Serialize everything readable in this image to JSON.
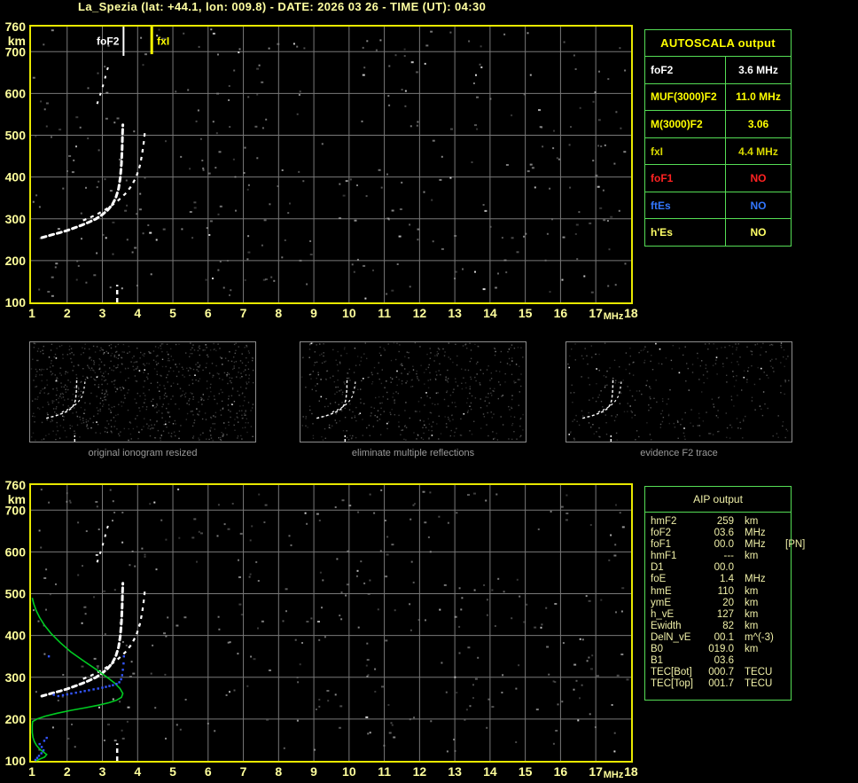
{
  "title": "La_Spezia (lat: +44.1, lon: 009.8) - DATE: 2026 03 26 - TIME (UT): 04:30",
  "colors": {
    "background": "#000000",
    "title_text": "#ffffa0",
    "axis_text": "#ffff9c",
    "plot_border": "#e8e800",
    "grid": "#787878",
    "trace": "#ffffff",
    "profile_green": "#00cc22",
    "restored_blue": "#3355ff",
    "table_border": "#55dd55",
    "autoscala_title": "#ffff00",
    "aip_text": "#f0f0a8",
    "caption_text": "#9a9a9a"
  },
  "ionogram": {
    "x_unit": "MHz",
    "y_unit": "km",
    "x_ticks": [
      1,
      2,
      3,
      4,
      5,
      6,
      7,
      8,
      9,
      10,
      11,
      12,
      13,
      14,
      15,
      16,
      17,
      18
    ],
    "y_ticks": [
      760,
      700,
      600,
      500,
      400,
      300,
      200,
      100
    ],
    "x_range": [
      1,
      18
    ],
    "y_range": [
      100,
      760
    ]
  },
  "chart_data": {
    "type": "line",
    "title": "Ionogram La_Spezia 2026-03-26 04:30 UT",
    "xlabel": "MHz",
    "ylabel": "km",
    "xlim": [
      1,
      18
    ],
    "ylim": [
      100,
      760
    ],
    "legend": "none",
    "grid": "on",
    "markers": [
      {
        "key": "foF2",
        "label": "foF2",
        "x": 3.6,
        "color": "#ffffff"
      },
      {
        "key": "fxI",
        "label": "fxI",
        "x": 4.4,
        "color": "#ffff00"
      }
    ],
    "series": [
      {
        "key": "o_trace",
        "name": "F2 trace ordinary ray (white)",
        "points": [
          [
            1.28,
            255
          ],
          [
            1.45,
            259
          ],
          [
            1.62,
            263
          ],
          [
            1.8,
            267
          ],
          [
            2.0,
            272
          ],
          [
            2.2,
            278
          ],
          [
            2.42,
            285
          ],
          [
            2.62,
            292
          ],
          [
            2.82,
            300
          ],
          [
            3.0,
            310
          ],
          [
            3.15,
            321
          ],
          [
            3.28,
            334
          ],
          [
            3.38,
            350
          ],
          [
            3.46,
            372
          ],
          [
            3.51,
            400
          ],
          [
            3.54,
            432
          ],
          [
            3.56,
            468
          ],
          [
            3.57,
            502
          ],
          [
            3.58,
            525
          ]
        ]
      },
      {
        "key": "x_trace",
        "name": "F2 trace extraordinary ray (white)",
        "points": [
          [
            2.45,
            296
          ],
          [
            2.65,
            303
          ],
          [
            2.85,
            311
          ],
          [
            3.05,
            320
          ],
          [
            3.25,
            331
          ],
          [
            3.45,
            344
          ],
          [
            3.65,
            360
          ],
          [
            3.82,
            378
          ],
          [
            3.96,
            400
          ],
          [
            4.06,
            426
          ],
          [
            4.13,
            455
          ],
          [
            4.18,
            486
          ],
          [
            4.21,
            512
          ]
        ]
      },
      {
        "key": "second_hop",
        "name": "second hop fragments (white)",
        "points": [
          [
            2.85,
            575
          ],
          [
            2.95,
            600
          ],
          [
            3.05,
            628
          ],
          [
            3.12,
            652
          ],
          [
            3.18,
            668
          ]
        ]
      },
      {
        "key": "e_streak",
        "name": "E-region vertical streak (white)",
        "points": [
          [
            3.42,
            100
          ],
          [
            3.42,
            142
          ]
        ]
      },
      {
        "key": "profile",
        "name": "electron density profile (green, bottom plot)",
        "points": [
          [
            1.01,
            490
          ],
          [
            1.05,
            476
          ],
          [
            1.12,
            460
          ],
          [
            1.22,
            443
          ],
          [
            1.36,
            424
          ],
          [
            1.55,
            404
          ],
          [
            1.8,
            383
          ],
          [
            2.1,
            361
          ],
          [
            2.45,
            340
          ],
          [
            2.8,
            320
          ],
          [
            3.1,
            302
          ],
          [
            3.35,
            286
          ],
          [
            3.5,
            273
          ],
          [
            3.58,
            261
          ],
          [
            3.54,
            252
          ],
          [
            3.4,
            245
          ],
          [
            3.18,
            239
          ],
          [
            2.88,
            233
          ],
          [
            2.52,
            227
          ],
          [
            2.12,
            221
          ],
          [
            1.72,
            214
          ],
          [
            1.38,
            207
          ],
          [
            1.14,
            200
          ],
          [
            1.02,
            194
          ],
          [
            1.01,
            185
          ],
          [
            1.01,
            168
          ],
          [
            1.03,
            156
          ],
          [
            1.07,
            146
          ],
          [
            1.13,
            137
          ],
          [
            1.22,
            128
          ],
          [
            1.33,
            121
          ],
          [
            1.42,
            115
          ],
          [
            1.36,
            109
          ],
          [
            1.22,
            104
          ],
          [
            1.12,
            100
          ]
        ]
      },
      {
        "key": "restored",
        "name": "restored trace points (blue, bottom plot)",
        "points": [
          [
            1.1,
            102
          ],
          [
            1.15,
            107
          ],
          [
            1.2,
            112
          ],
          [
            1.27,
            118
          ],
          [
            1.33,
            125
          ],
          [
            1.28,
            133
          ],
          [
            1.22,
            140
          ],
          [
            1.35,
            148
          ],
          [
            1.42,
            155
          ],
          [
            1.48,
            350
          ],
          [
            1.62,
            258
          ],
          [
            1.75,
            255
          ],
          [
            1.88,
            257
          ],
          [
            2.0,
            259
          ],
          [
            2.12,
            261
          ],
          [
            2.25,
            263
          ],
          [
            2.38,
            265
          ],
          [
            2.5,
            267
          ],
          [
            2.62,
            269
          ],
          [
            2.75,
            271
          ],
          [
            2.88,
            273
          ],
          [
            3.0,
            275
          ],
          [
            3.1,
            277
          ],
          [
            3.2,
            279
          ],
          [
            3.3,
            281
          ],
          [
            3.4,
            284
          ],
          [
            3.48,
            288
          ],
          [
            3.53,
            295
          ],
          [
            3.56,
            305
          ],
          [
            3.58,
            318
          ],
          [
            3.6,
            333
          ],
          [
            3.61,
            350
          ]
        ]
      }
    ]
  },
  "autoscala_table": {
    "title": "AUTOSCALA output",
    "rows": [
      {
        "key": "fof2",
        "param": "foF2",
        "value": "3.6 MHz",
        "color": "#ffffff"
      },
      {
        "key": "muf3000f2",
        "param": "MUF(3000)F2",
        "value": "11.0 MHz",
        "color": "#ffff00"
      },
      {
        "key": "m3000f2",
        "param": "M(3000)F2",
        "value": "3.06",
        "color": "#ffff00"
      },
      {
        "key": "fxi",
        "param": "fxI",
        "value": "4.4 MHz",
        "color": "#d8d800"
      },
      {
        "key": "fof1",
        "param": "foF1",
        "value": "NO",
        "color": "#ff2222"
      },
      {
        "key": "ftes",
        "param": "ftEs",
        "value": "NO",
        "color": "#3377ff"
      },
      {
        "key": "hes",
        "param": "h'Es",
        "value": "NO",
        "color": "#ffff66"
      }
    ]
  },
  "thumbnails": [
    {
      "key": "original",
      "caption": "original ionogram resized"
    },
    {
      "key": "eliminate",
      "caption": "eliminate multiple reflections"
    },
    {
      "key": "evidence",
      "caption": "evidence F2 trace"
    }
  ],
  "aip_table": {
    "title": "AIP output",
    "rows": [
      {
        "key": "hmf2",
        "name": "hmF2",
        "value": "259",
        "unit": "km",
        "note": ""
      },
      {
        "key": "fof2",
        "name": "foF2",
        "value": "03.6",
        "unit": "MHz",
        "note": ""
      },
      {
        "key": "fof1",
        "name": "foF1",
        "value": "00.0",
        "unit": "MHz",
        "note": "[PN]"
      },
      {
        "key": "hmf1",
        "name": "hmF1",
        "value": "---",
        "unit": "km",
        "note": ""
      },
      {
        "key": "d1",
        "name": "D1",
        "value": "00.0",
        "unit": "",
        "note": ""
      },
      {
        "key": "foe",
        "name": "foE",
        "value": "1.4",
        "unit": "MHz",
        "note": ""
      },
      {
        "key": "hme",
        "name": "hmE",
        "value": "110",
        "unit": "km",
        "note": ""
      },
      {
        "key": "yme",
        "name": "ymE",
        "value": "20",
        "unit": "km",
        "note": ""
      },
      {
        "key": "hve",
        "name": "h_vE",
        "value": "127",
        "unit": "km",
        "note": ""
      },
      {
        "key": "ewidth",
        "name": "Ewidth",
        "value": "82",
        "unit": "km",
        "note": ""
      },
      {
        "key": "delnve",
        "name": "DelN_vE",
        "value": "00.1",
        "unit": "m^(-3)",
        "note": ""
      },
      {
        "key": "b0",
        "name": "B0",
        "value": "019.0",
        "unit": "km",
        "note": ""
      },
      {
        "key": "b1",
        "name": "B1",
        "value": "03.6",
        "unit": "",
        "note": ""
      },
      {
        "key": "tecbot",
        "name": "TEC[Bot]",
        "value": "000.7",
        "unit": "TECU",
        "note": ""
      },
      {
        "key": "tectop",
        "name": "TEC[Top]",
        "value": "001.7",
        "unit": "TECU",
        "note": ""
      }
    ]
  }
}
